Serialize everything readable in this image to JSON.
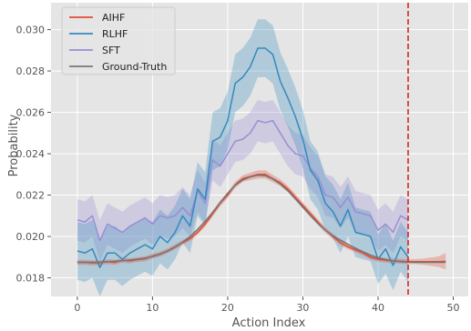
{
  "chart_data": {
    "type": "line",
    "title": "",
    "xlabel": "Action Index",
    "ylabel": "Probability",
    "xlim": [
      -3.5,
      52
    ],
    "ylim": [
      0.0171,
      0.0313
    ],
    "x_ticks": [
      0,
      10,
      20,
      30,
      40,
      50
    ],
    "y_ticks": [
      0.018,
      0.02,
      0.022,
      0.024,
      0.026,
      0.028,
      0.03
    ],
    "y_tick_labels": [
      "0.018",
      "0.020",
      "0.022",
      "0.024",
      "0.026",
      "0.028",
      "0.030"
    ],
    "grid": true,
    "background": "#e5e5e5",
    "legend_position": "top-left",
    "vline": {
      "x": 44,
      "color": "#d62728",
      "style": "dashed"
    },
    "series": [
      {
        "name": "AIHF",
        "color": "#e24a33",
        "x": [
          0,
          1,
          2,
          3,
          4,
          5,
          6,
          7,
          8,
          9,
          10,
          11,
          12,
          13,
          14,
          15,
          16,
          17,
          18,
          19,
          20,
          21,
          22,
          23,
          24,
          25,
          26,
          27,
          28,
          29,
          30,
          31,
          32,
          33,
          34,
          35,
          36,
          37,
          38,
          39,
          40,
          41,
          42,
          43,
          44,
          45,
          46,
          47,
          48,
          49
        ],
        "y": [
          0.01875,
          0.01875,
          0.01872,
          0.01873,
          0.01878,
          0.01875,
          0.01885,
          0.01882,
          0.01888,
          0.01892,
          0.01905,
          0.01915,
          0.0193,
          0.0195,
          0.0197,
          0.0199,
          0.0202,
          0.0206,
          0.0211,
          0.0216,
          0.022,
          0.0225,
          0.0228,
          0.0229,
          0.023,
          0.023,
          0.0228,
          0.0226,
          0.0223,
          0.0219,
          0.0215,
          0.0211,
          0.0207,
          0.0203,
          0.02,
          0.0197,
          0.0195,
          0.01935,
          0.0192,
          0.019,
          0.0189,
          0.01885,
          0.01882,
          0.0188,
          0.01878,
          0.01878,
          0.01878,
          0.01878,
          0.01878,
          0.0188
        ],
        "band": [
          0.00012,
          0.00012,
          0.00012,
          0.00012,
          0.00012,
          0.00012,
          0.00012,
          0.00012,
          0.00012,
          0.00012,
          0.00012,
          0.00012,
          0.00012,
          0.00012,
          0.00012,
          0.00012,
          0.00012,
          0.00012,
          0.00014,
          0.00015,
          0.00015,
          0.00015,
          0.00016,
          0.00018,
          0.0002,
          0.0002,
          0.00018,
          0.00016,
          0.00015,
          0.00015,
          0.00014,
          0.00014,
          0.00014,
          0.00014,
          0.00013,
          0.00013,
          0.00012,
          0.00012,
          0.00012,
          0.00012,
          0.00012,
          0.00012,
          0.00012,
          0.00012,
          0.00012,
          0.00012,
          0.00015,
          0.0002,
          0.00025,
          0.0004
        ]
      },
      {
        "name": "RLHF",
        "color": "#348abd",
        "x": [
          0,
          1,
          2,
          3,
          4,
          5,
          6,
          7,
          8,
          9,
          10,
          11,
          12,
          13,
          14,
          15,
          16,
          17,
          18,
          19,
          20,
          21,
          22,
          23,
          24,
          25,
          26,
          27,
          28,
          29,
          30,
          31,
          32,
          33,
          34,
          35,
          36,
          37,
          38,
          39,
          40,
          41,
          42,
          43,
          44
        ],
        "y": [
          0.0193,
          0.0192,
          0.0194,
          0.0185,
          0.0192,
          0.0192,
          0.0189,
          0.0192,
          0.0194,
          0.0196,
          0.0194,
          0.02,
          0.0197,
          0.0202,
          0.021,
          0.0205,
          0.0223,
          0.0218,
          0.0246,
          0.0248,
          0.0256,
          0.0274,
          0.0277,
          0.0282,
          0.0291,
          0.0291,
          0.0288,
          0.0275,
          0.0267,
          0.0258,
          0.0247,
          0.0232,
          0.0227,
          0.0216,
          0.0212,
          0.0205,
          0.0213,
          0.0202,
          0.0201,
          0.02,
          0.0189,
          0.0194,
          0.0186,
          0.0195,
          0.019
        ],
        "band": [
          0.0014,
          0.0014,
          0.0014,
          0.0014,
          0.0013,
          0.0013,
          0.0013,
          0.0013,
          0.0013,
          0.0013,
          0.0013,
          0.0013,
          0.0013,
          0.0013,
          0.0013,
          0.0013,
          0.0013,
          0.0013,
          0.0014,
          0.0014,
          0.0014,
          0.0014,
          0.0014,
          0.0014,
          0.0014,
          0.0014,
          0.0014,
          0.0014,
          0.0014,
          0.0014,
          0.0014,
          0.0014,
          0.0014,
          0.0013,
          0.0013,
          0.0013,
          0.0013,
          0.0012,
          0.0012,
          0.0012,
          0.0012,
          0.0012,
          0.0012,
          0.0012,
          0.0012
        ]
      },
      {
        "name": "SFT",
        "color": "#988ed5",
        "x": [
          0,
          1,
          2,
          3,
          4,
          5,
          6,
          7,
          8,
          9,
          10,
          11,
          12,
          13,
          14,
          15,
          16,
          17,
          18,
          19,
          20,
          21,
          22,
          23,
          24,
          25,
          26,
          27,
          28,
          29,
          30,
          31,
          32,
          33,
          34,
          35,
          36,
          37,
          38,
          39,
          40,
          41,
          42,
          43,
          44
        ],
        "y": [
          0.0208,
          0.0207,
          0.021,
          0.0198,
          0.0206,
          0.0204,
          0.0202,
          0.0205,
          0.0207,
          0.0209,
          0.0206,
          0.021,
          0.0209,
          0.021,
          0.0214,
          0.021,
          0.0222,
          0.0216,
          0.0237,
          0.0234,
          0.024,
          0.0246,
          0.0247,
          0.025,
          0.0256,
          0.0255,
          0.0256,
          0.025,
          0.0244,
          0.024,
          0.0239,
          0.0233,
          0.0229,
          0.022,
          0.0219,
          0.0214,
          0.0219,
          0.0212,
          0.0211,
          0.021,
          0.0203,
          0.0206,
          0.0202,
          0.021,
          0.0208
        ],
        "band": [
          0.001,
          0.001,
          0.001,
          0.001,
          0.001,
          0.001,
          0.001,
          0.001,
          0.001,
          0.001,
          0.001,
          0.001,
          0.001,
          0.001,
          0.001,
          0.001,
          0.001,
          0.001,
          0.001,
          0.001,
          0.001,
          0.001,
          0.001,
          0.001,
          0.001,
          0.001,
          0.001,
          0.001,
          0.001,
          0.001,
          0.001,
          0.001,
          0.001,
          0.001,
          0.001,
          0.001,
          0.001,
          0.001,
          0.001,
          0.001,
          0.001,
          0.001,
          0.001,
          0.001,
          0.001
        ]
      },
      {
        "name": "Ground-Truth",
        "color": "#777777",
        "x": [
          0,
          1,
          2,
          3,
          4,
          5,
          6,
          7,
          8,
          9,
          10,
          11,
          12,
          13,
          14,
          15,
          16,
          17,
          18,
          19,
          20,
          21,
          22,
          23,
          24,
          25,
          26,
          27,
          28,
          29,
          30,
          31,
          32,
          33,
          34,
          35,
          36,
          37,
          38,
          39,
          40,
          41,
          42,
          43,
          44,
          45,
          46,
          47,
          48,
          49
        ],
        "y": [
          0.01875,
          0.01875,
          0.01875,
          0.01876,
          0.01878,
          0.0188,
          0.01883,
          0.01886,
          0.0189,
          0.01895,
          0.01903,
          0.01914,
          0.01929,
          0.01948,
          0.01972,
          0.02,
          0.02034,
          0.02073,
          0.02116,
          0.02163,
          0.02208,
          0.02247,
          0.02273,
          0.02288,
          0.02296,
          0.02294,
          0.02278,
          0.02253,
          0.02221,
          0.02182,
          0.02141,
          0.02101,
          0.02063,
          0.0203,
          0.02003,
          0.01982,
          0.01962,
          0.01943,
          0.01925,
          0.0191,
          0.01897,
          0.01888,
          0.01882,
          0.01878,
          0.01876,
          0.01875,
          0.01875,
          0.01875,
          0.01875,
          0.01875
        ]
      }
    ]
  }
}
